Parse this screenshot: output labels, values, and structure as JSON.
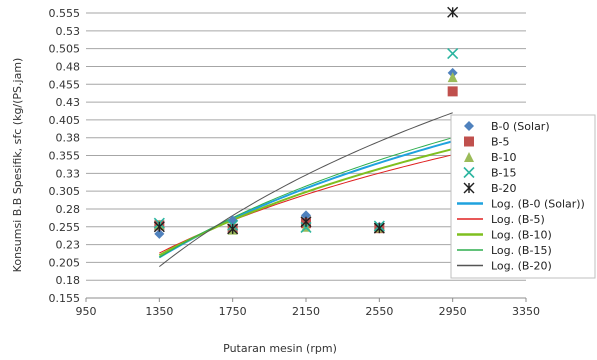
{
  "chart_data": {
    "type": "scatter",
    "title": "",
    "xlabel": "Putaran mesin (rpm)",
    "ylabel": "Konsumsi B.B Spesifik, sfc (kg/(PS.jam)",
    "xlim": [
      950,
      3350
    ],
    "ylim": [
      0.155,
      0.555
    ],
    "x_ticks": [
      950,
      1350,
      1750,
      2150,
      2550,
      2950,
      3350
    ],
    "x_tick_labels": [
      "950",
      "1350",
      "1750",
      "2150",
      "2550",
      "2950",
      "3350"
    ],
    "y_ticks": [
      0.155,
      0.18,
      0.205,
      0.23,
      0.255,
      0.28,
      0.305,
      0.33,
      0.355,
      0.38,
      0.405,
      0.43,
      0.455,
      0.48,
      0.505,
      0.53,
      0.555
    ],
    "y_tick_labels": [
      "0.155",
      "0.18",
      "0.205",
      "0.23",
      "0.255",
      "0.28",
      "0.305",
      "0.33",
      "0.355",
      "0.38",
      "0.405",
      "0.43",
      "0.455",
      "0.48",
      "0.505",
      "0.53",
      "0.555"
    ],
    "grid": "horizontal",
    "legend_position": "right",
    "x": [
      1350,
      1750,
      2150,
      2550,
      2950
    ],
    "series": [
      {
        "name": "B-0 (Solar)",
        "marker": "diamond",
        "color": "#4f81bd",
        "values": [
          0.245,
          0.264,
          0.271,
          0.255,
          0.471
        ]
      },
      {
        "name": "B-5",
        "marker": "square",
        "color": "#c0504d",
        "values": [
          0.257,
          0.252,
          0.26,
          0.253,
          0.445
        ]
      },
      {
        "name": "B-10",
        "marker": "triangle",
        "color": "#9bbb59",
        "values": [
          0.258,
          0.251,
          0.255,
          0.254,
          0.465
        ]
      },
      {
        "name": "B-15",
        "marker": "x",
        "color": "#2bb5a0",
        "values": [
          0.26,
          0.257,
          0.254,
          0.256,
          0.498
        ]
      },
      {
        "name": "B-20",
        "marker": "star",
        "color": "#1f1f1f",
        "values": [
          0.255,
          0.252,
          0.262,
          0.253,
          0.556
        ]
      }
    ],
    "trendlines": [
      {
        "name": "Log. (B-0 (Solar))",
        "color": "#1fa2de",
        "width": 2,
        "x_range": [
          1350,
          2950
        ],
        "values": [
          0.212,
          0.268,
          0.311,
          0.345,
          0.375
        ]
      },
      {
        "name": "Log. (B-5)",
        "color": "#e02020",
        "width": 1,
        "x_range": [
          1350,
          2950
        ],
        "values": [
          0.218,
          0.264,
          0.3,
          0.33,
          0.356
        ]
      },
      {
        "name": "Log. (B-10)",
        "color": "#7fbf1f",
        "width": 2,
        "x_range": [
          1350,
          2950
        ],
        "values": [
          0.215,
          0.265,
          0.303,
          0.336,
          0.364
        ]
      },
      {
        "name": "Log. (B-15)",
        "color": "#2fae4f",
        "width": 1,
        "x_range": [
          1350,
          2950
        ],
        "values": [
          0.212,
          0.268,
          0.311,
          0.348,
          0.38
        ]
      },
      {
        "name": "Log. (B-20)",
        "color": "#555555",
        "width": 1,
        "x_range": [
          1350,
          2950
        ],
        "values": [
          0.199,
          0.27,
          0.325,
          0.372,
          0.415
        ]
      }
    ]
  }
}
